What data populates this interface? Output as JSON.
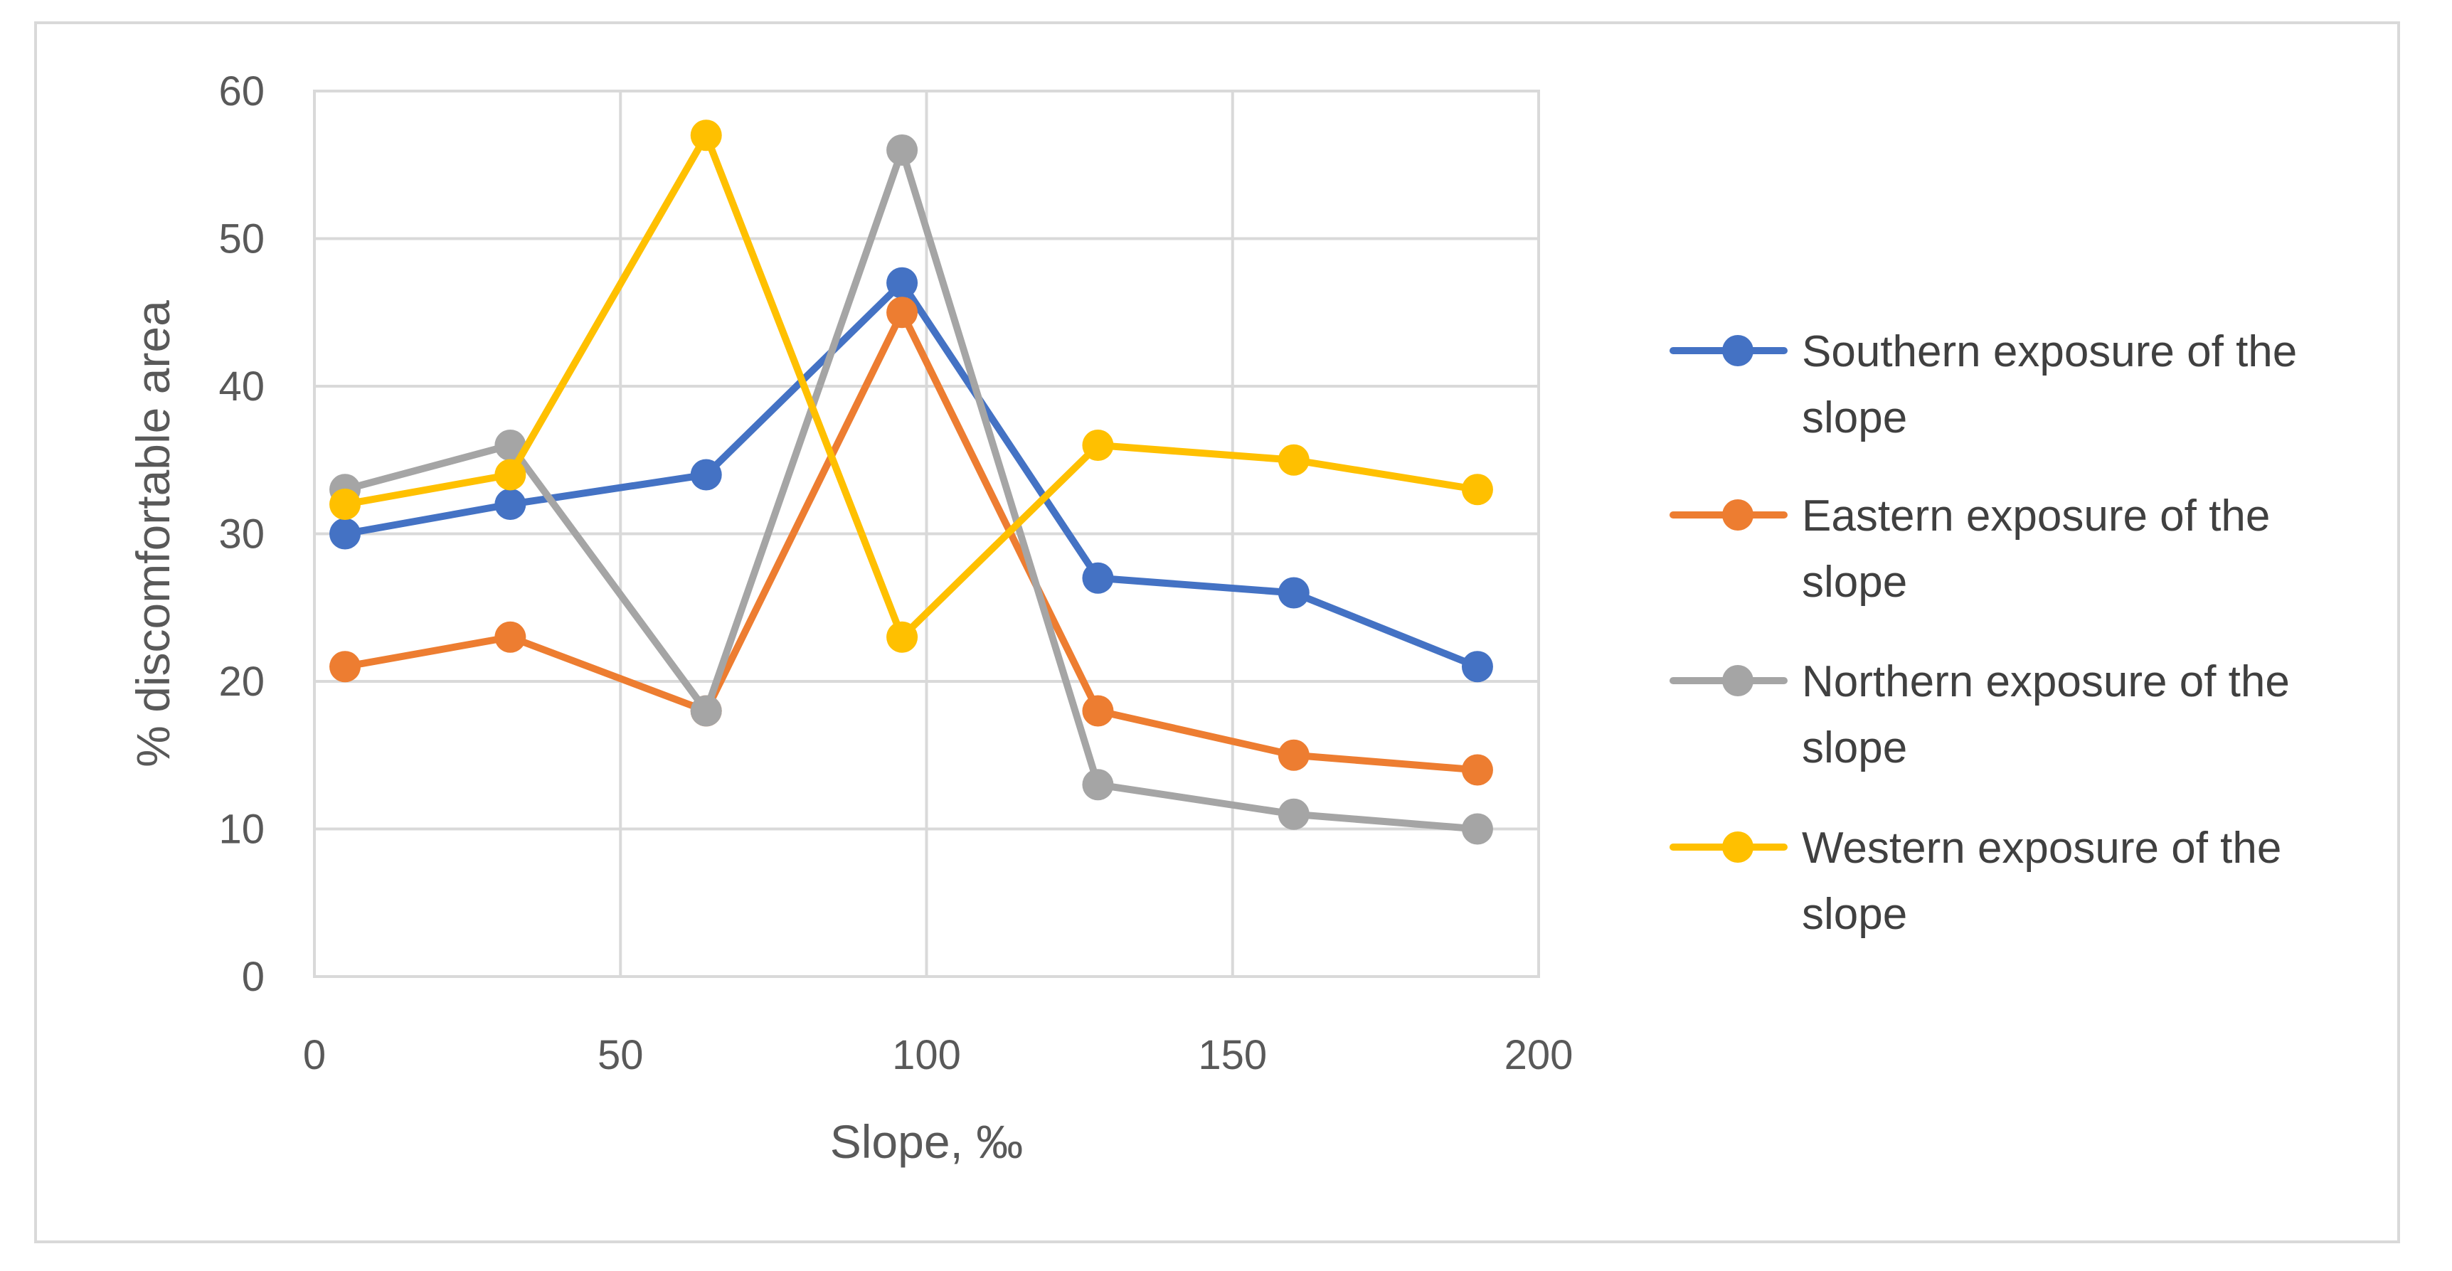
{
  "chart_data": {
    "type": "line",
    "title": "",
    "xlabel": "Slope, ‰",
    "ylabel": "% discomfortable area",
    "xlim": [
      0,
      200
    ],
    "ylim": [
      0,
      60
    ],
    "xticks": [
      0,
      50,
      100,
      150,
      200
    ],
    "yticks": [
      0,
      10,
      20,
      30,
      40,
      50,
      60
    ],
    "grid": true,
    "legend_position": "right",
    "x": [
      5,
      32,
      64,
      96,
      128,
      160,
      190
    ],
    "series": [
      {
        "name": "Southern exposure of the slope",
        "legend_lines": [
          "Southern exposure of the",
          "slope"
        ],
        "color": "#4472c4",
        "values": [
          30,
          32,
          34,
          47,
          27,
          26,
          21
        ]
      },
      {
        "name": "Eastern exposure of the slope",
        "legend_lines": [
          "Eastern exposure of the",
          "slope"
        ],
        "color": "#ed7d31",
        "values": [
          21,
          23,
          18,
          45,
          18,
          15,
          14
        ]
      },
      {
        "name": "Northern exposure of the slope",
        "legend_lines": [
          "Northern exposure of the",
          "slope"
        ],
        "color": "#a5a5a5",
        "values": [
          33,
          36,
          18,
          56,
          13,
          11,
          10
        ]
      },
      {
        "name": "Western exposure of the slope",
        "legend_lines": [
          "Western exposure of the",
          "slope"
        ],
        "color": "#ffc000",
        "values": [
          32,
          34,
          57,
          23,
          36,
          35,
          33
        ]
      }
    ]
  }
}
